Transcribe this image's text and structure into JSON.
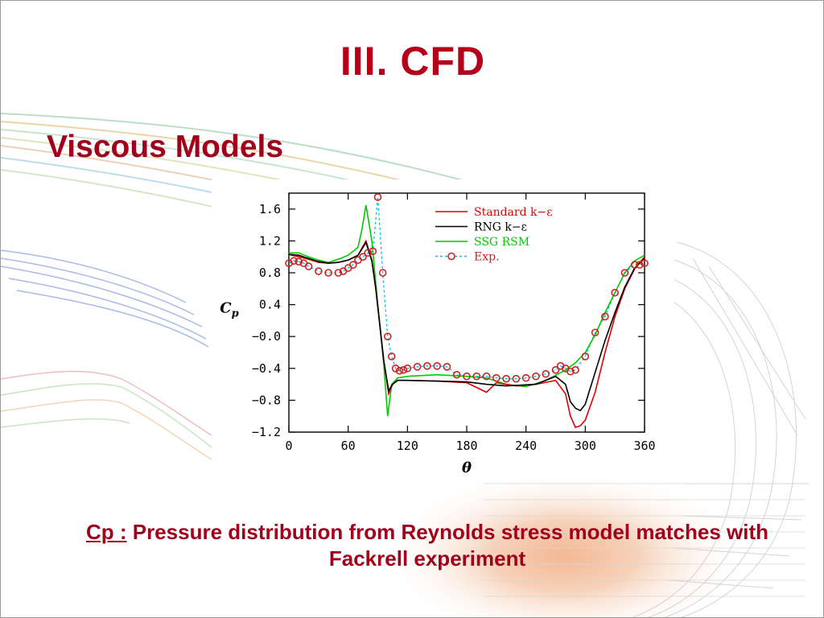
{
  "slide": {
    "title": "III. CFD",
    "subtitle": "Viscous Models",
    "caption_label": "Cp :",
    "caption_text": " Pressure distribution from Reynolds stress model matches with Fackrell experiment"
  },
  "colors": {
    "title": "#b5001a",
    "standard": "#e00000",
    "rng": "#000000",
    "ssg": "#00cc00",
    "exp": "#00bfe6",
    "exp_marker": "#cc2222"
  },
  "chart_data": {
    "type": "line",
    "xlabel": "θ",
    "ylabel": "C_p",
    "xlim": [
      0,
      360
    ],
    "ylim": [
      -1.2,
      1.8
    ],
    "xticks": [
      0,
      60,
      120,
      180,
      240,
      300,
      360
    ],
    "yticks": [
      -1.2,
      -0.8,
      -0.4,
      0.0,
      0.4,
      0.8,
      1.2,
      1.6
    ],
    "yticklabels": [
      "−1.2",
      "−0.8",
      "−0.4",
      "−0.0",
      "0.4",
      "0.8",
      "1.2",
      "1.6"
    ],
    "legend_position": "top-right",
    "series": [
      {
        "name": "Standard k−ε",
        "style": "solid",
        "x": [
          0,
          10,
          20,
          30,
          40,
          50,
          60,
          70,
          78,
          84,
          88,
          96,
          101,
          105,
          110,
          120,
          150,
          180,
          200,
          210,
          230,
          250,
          270,
          280,
          285,
          290,
          295,
          300,
          310,
          320,
          330,
          340,
          350,
          360
        ],
        "y": [
          1.03,
          1.0,
          0.97,
          0.93,
          0.92,
          0.93,
          0.96,
          1.02,
          1.2,
          0.96,
          0.6,
          -0.3,
          -0.72,
          -0.6,
          -0.55,
          -0.55,
          -0.56,
          -0.58,
          -0.7,
          -0.58,
          -0.62,
          -0.6,
          -0.55,
          -0.72,
          -1.0,
          -1.14,
          -1.12,
          -1.05,
          -0.7,
          -0.2,
          0.25,
          0.6,
          0.85,
          1.0
        ]
      },
      {
        "name": "RNG k−ε",
        "style": "solid",
        "x": [
          0,
          10,
          20,
          30,
          40,
          50,
          60,
          70,
          78,
          84,
          88,
          96,
          101,
          105,
          110,
          120,
          150,
          180,
          200,
          220,
          250,
          270,
          280,
          285,
          290,
          295,
          300,
          310,
          320,
          330,
          340,
          350,
          360
        ],
        "y": [
          1.03,
          1.02,
          0.98,
          0.94,
          0.92,
          0.93,
          0.96,
          1.02,
          1.18,
          0.95,
          0.6,
          -0.3,
          -0.68,
          -0.6,
          -0.55,
          -0.55,
          -0.56,
          -0.57,
          -0.6,
          -0.62,
          -0.6,
          -0.5,
          -0.6,
          -0.82,
          -0.9,
          -0.93,
          -0.85,
          -0.45,
          -0.05,
          0.3,
          0.62,
          0.86,
          0.98
        ]
      },
      {
        "name": "SSG RSM",
        "style": "solid",
        "x": [
          0,
          10,
          20,
          30,
          40,
          50,
          60,
          70,
          74,
          78,
          84,
          90,
          96,
          100,
          104,
          110,
          120,
          150,
          180,
          200,
          220,
          240,
          260,
          280,
          290,
          300,
          310,
          320,
          330,
          340,
          350,
          360
        ],
        "y": [
          1.05,
          1.05,
          1.0,
          0.96,
          0.93,
          0.97,
          1.02,
          1.12,
          1.35,
          1.65,
          1.2,
          0.4,
          -0.35,
          -1.0,
          -0.6,
          -0.52,
          -0.5,
          -0.48,
          -0.5,
          -0.52,
          -0.6,
          -0.63,
          -0.55,
          -0.42,
          -0.33,
          -0.2,
          0.02,
          0.3,
          0.55,
          0.8,
          0.95,
          1.02
        ]
      },
      {
        "name": "Exp.",
        "style": "dashed-markers",
        "x": [
          0,
          5,
          10,
          15,
          20,
          30,
          40,
          50,
          55,
          60,
          65,
          70,
          75,
          80,
          85,
          90,
          95,
          100,
          104,
          108,
          112,
          116,
          120,
          130,
          140,
          150,
          160,
          170,
          180,
          190,
          200,
          210,
          220,
          230,
          240,
          250,
          260,
          270,
          275,
          280,
          285,
          290,
          300,
          310,
          320,
          330,
          340,
          350,
          355,
          360
        ],
        "y": [
          0.92,
          0.95,
          0.94,
          0.92,
          0.88,
          0.82,
          0.8,
          0.8,
          0.82,
          0.86,
          0.9,
          0.96,
          1.0,
          1.05,
          1.07,
          1.75,
          0.8,
          0.0,
          -0.25,
          -0.4,
          -0.43,
          -0.42,
          -0.4,
          -0.38,
          -0.37,
          -0.37,
          -0.38,
          -0.48,
          -0.5,
          -0.5,
          -0.5,
          -0.52,
          -0.53,
          -0.53,
          -0.52,
          -0.5,
          -0.47,
          -0.42,
          -0.37,
          -0.4,
          -0.44,
          -0.42,
          -0.25,
          0.05,
          0.25,
          0.55,
          0.8,
          0.9,
          0.9,
          0.92
        ]
      }
    ]
  }
}
